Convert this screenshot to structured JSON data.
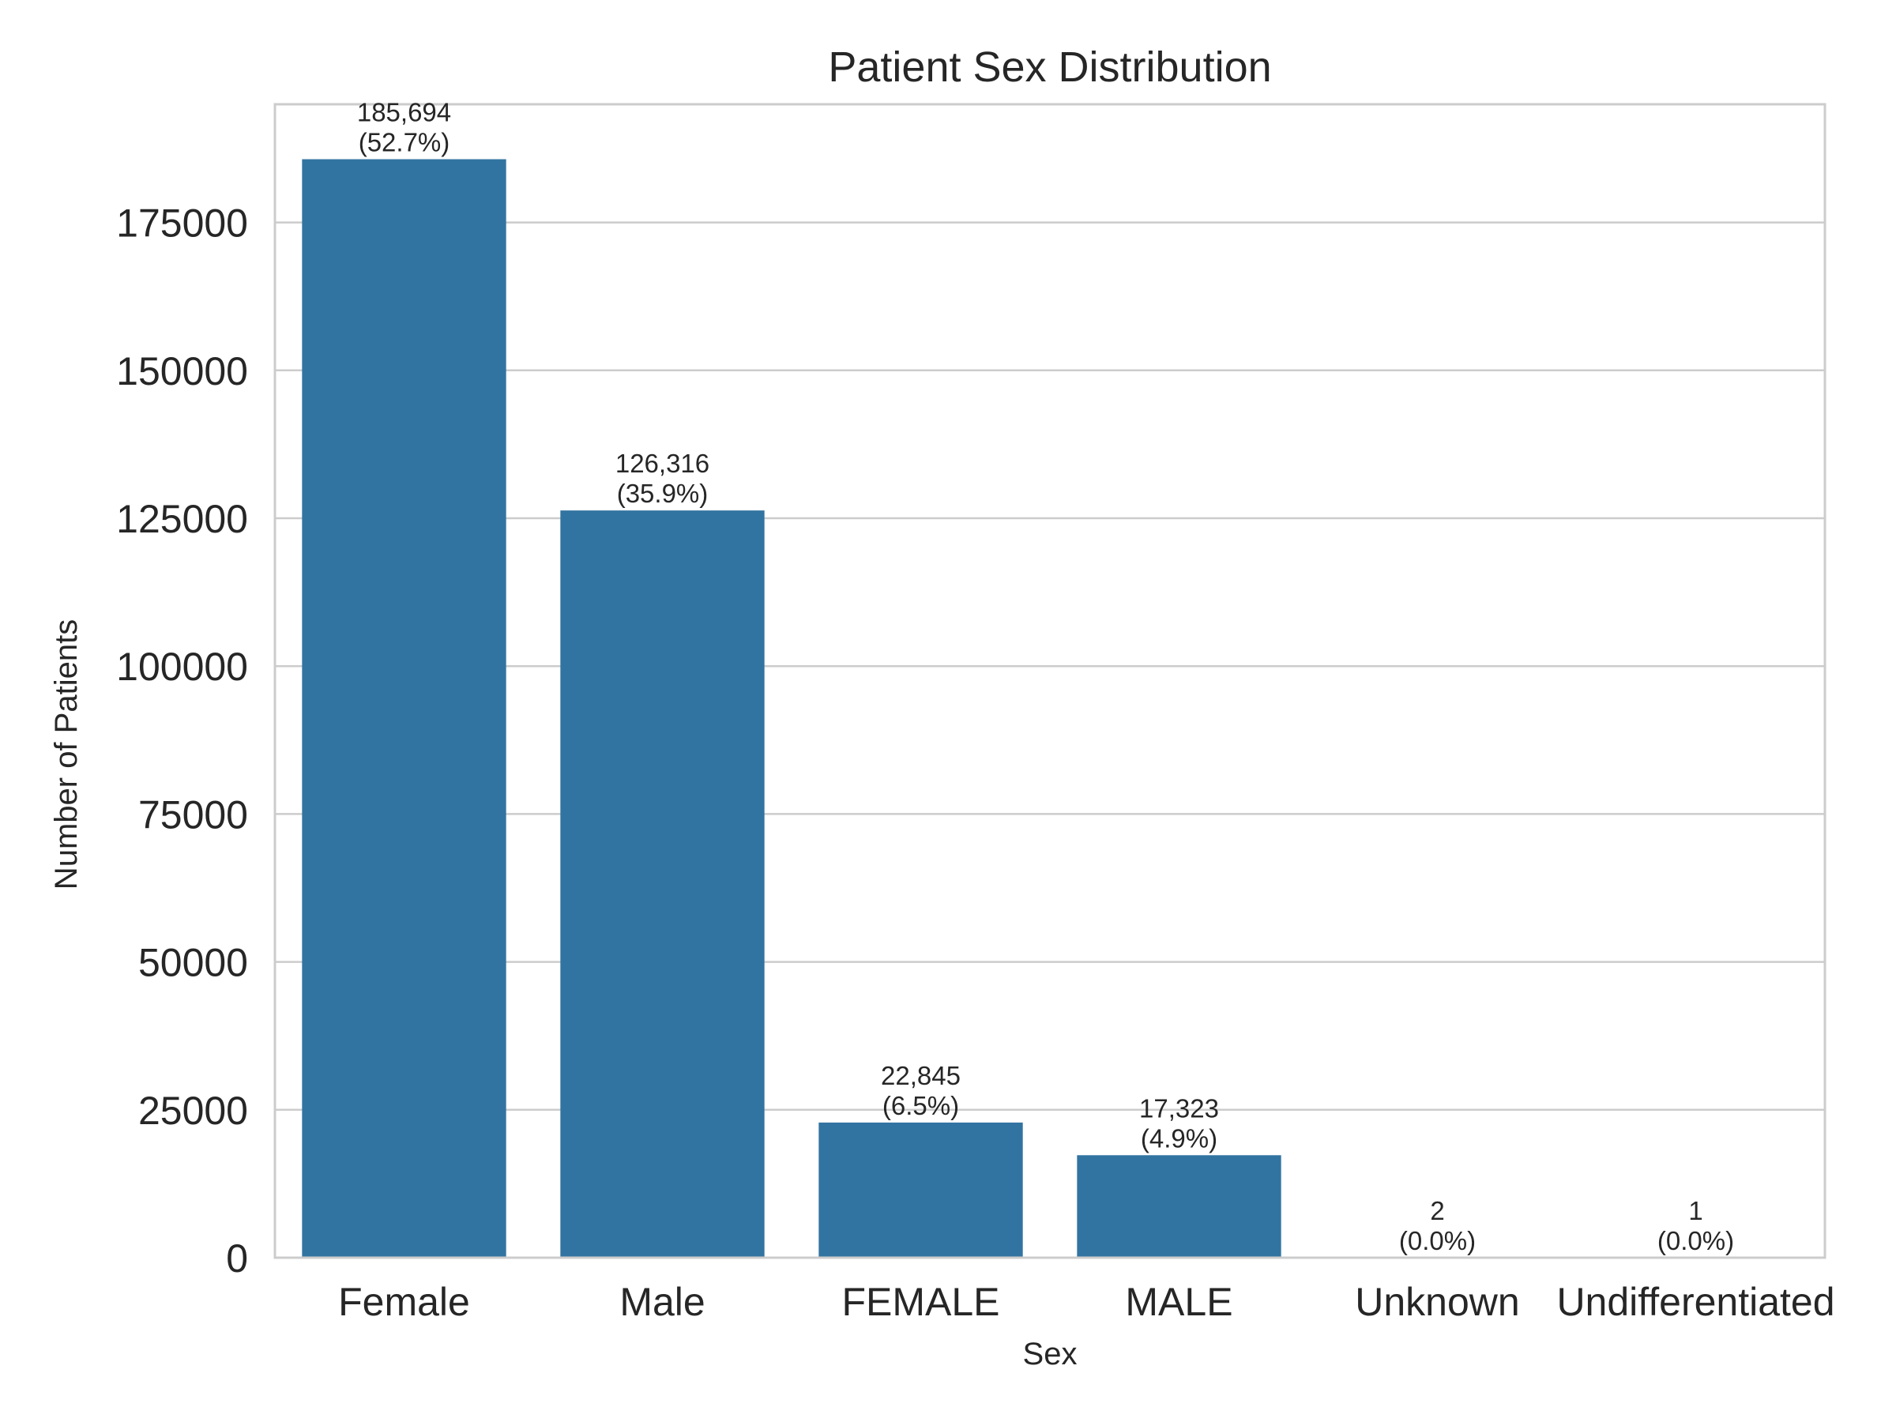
{
  "chart_data": {
    "type": "bar",
    "title": "Patient Sex Distribution",
    "xlabel": "Sex",
    "ylabel": "Number of Patients",
    "categories": [
      "Female",
      "Male",
      "FEMALE",
      "MALE",
      "Unknown",
      "Undifferentiated"
    ],
    "values": [
      185694,
      126316,
      22845,
      17323,
      2,
      1
    ],
    "value_labels": [
      "185,694",
      "126,316",
      "22,845",
      "17,323",
      "2",
      "1"
    ],
    "percent_labels": [
      "(52.7%)",
      "(35.9%)",
      "(6.5%)",
      "(4.9%)",
      "(0.0%)",
      "(0.0%)"
    ],
    "yticks": [
      0,
      25000,
      50000,
      75000,
      100000,
      125000,
      150000,
      175000
    ],
    "ytick_labels": [
      "0",
      "25000",
      "50000",
      "75000",
      "100000",
      "125000",
      "150000",
      "175000"
    ],
    "ylim": [
      0,
      194979
    ],
    "grid": true,
    "colors": {
      "bar": "#3274a1",
      "grid": "#cccccc",
      "text": "#262626"
    }
  }
}
